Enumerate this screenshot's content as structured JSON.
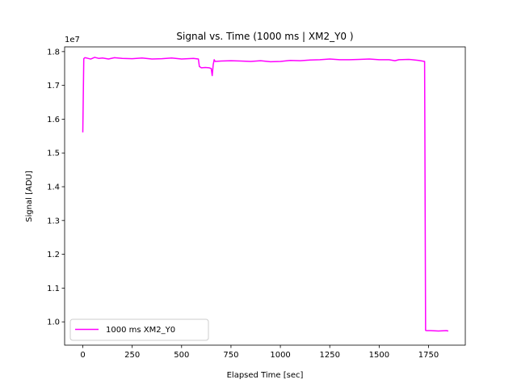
{
  "chart_data": {
    "type": "line",
    "title": "Signal vs. Time (1000 ms | XM2_Y0 )",
    "xlabel": "Elapsed Time [sec]",
    "ylabel": "Signal [ADU]",
    "y_offset_label": "1e7",
    "y_scale_exponent": 7,
    "xlim": [
      -92,
      1936
    ],
    "ylim": [
      0.931,
      1.814
    ],
    "x_ticks": [
      0,
      250,
      500,
      750,
      1000,
      1250,
      1500,
      1750
    ],
    "x_tick_labels": [
      "0",
      "250",
      "500",
      "750",
      "1000",
      "1250",
      "1500",
      "1750"
    ],
    "y_ticks": [
      1.0,
      1.1,
      1.2,
      1.3,
      1.4,
      1.5,
      1.6,
      1.7,
      1.8
    ],
    "y_tick_labels": [
      "1.0",
      "1.1",
      "1.2",
      "1.3",
      "1.4",
      "1.5",
      "1.6",
      "1.7",
      "1.8"
    ],
    "grid": false,
    "legend_position": "lower left",
    "series": [
      {
        "name": "1000 ms XM2_Y0",
        "color": "#ff00ff",
        "x": [
          0,
          5,
          10,
          20,
          40,
          60,
          80,
          100,
          130,
          160,
          200,
          250,
          300,
          350,
          400,
          450,
          500,
          530,
          560,
          585,
          590,
          600,
          620,
          640,
          650,
          655,
          660,
          665,
          670,
          700,
          750,
          800,
          850,
          900,
          950,
          1000,
          1050,
          1100,
          1150,
          1200,
          1250,
          1300,
          1350,
          1400,
          1450,
          1500,
          1550,
          1580,
          1600,
          1650,
          1700,
          1730,
          1735,
          1740,
          1760,
          1800,
          1840,
          1850
        ],
        "y": [
          1.561,
          1.779,
          1.782,
          1.781,
          1.778,
          1.783,
          1.78,
          1.781,
          1.778,
          1.782,
          1.78,
          1.779,
          1.781,
          1.778,
          1.779,
          1.781,
          1.778,
          1.779,
          1.78,
          1.778,
          1.756,
          1.752,
          1.753,
          1.752,
          1.75,
          1.729,
          1.761,
          1.776,
          1.771,
          1.772,
          1.773,
          1.772,
          1.771,
          1.773,
          1.77,
          1.771,
          1.774,
          1.773,
          1.775,
          1.776,
          1.778,
          1.776,
          1.776,
          1.777,
          1.778,
          1.776,
          1.776,
          1.773,
          1.776,
          1.777,
          1.774,
          1.771,
          0.975,
          0.974,
          0.974,
          0.973,
          0.974,
          0.973
        ]
      }
    ]
  }
}
